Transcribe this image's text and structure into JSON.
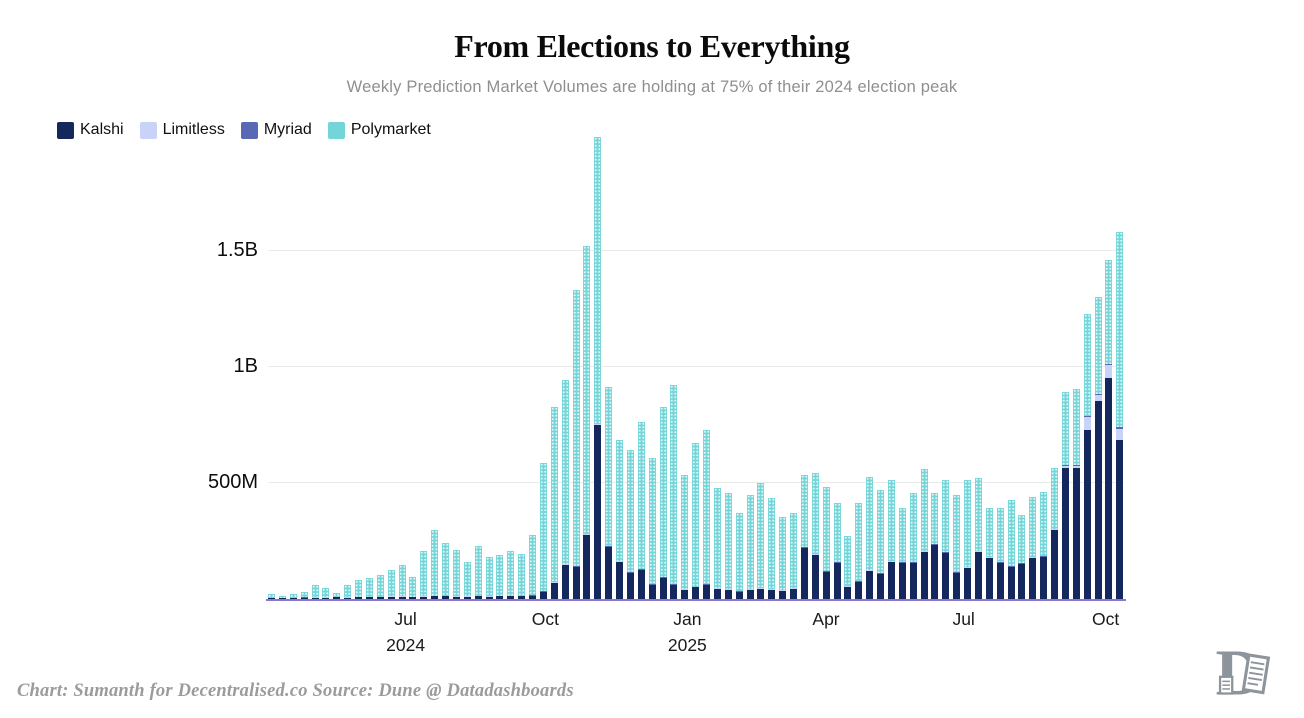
{
  "header": {
    "title": "From Elections to Everything",
    "subtitle": "Weekly Prediction Market Volumes are holding at 75% of their 2024 election peak"
  },
  "legend": [
    {
      "label": "Kalshi",
      "color": "#15285e"
    },
    {
      "label": "Limitless",
      "color": "#c9d3f7"
    },
    {
      "label": "Myriad",
      "color": "#5868b5"
    },
    {
      "label": "Polymarket",
      "color": "#73d5d7"
    }
  ],
  "footer": {
    "credit": "Chart: Sumanth for Decentralised.co Source: Dune @ Datadashboards"
  },
  "logo": {
    "name": "decentralised-d-scroll-logo",
    "color": "#8d949c"
  },
  "chart_data": {
    "type": "bar",
    "stacked": true,
    "title": "From Elections to Everything",
    "unit_note": "weekly volume, values in millions of USD (M)",
    "grid": "horizontal",
    "legend_position": "top-left",
    "ylim": [
      0,
      2000
    ],
    "y_ticks": [
      {
        "value": 500,
        "label": "500M"
      },
      {
        "value": 1000,
        "label": "1B"
      },
      {
        "value": 1500,
        "label": "1.5B"
      }
    ],
    "x_ticks": [
      {
        "index": 12.2,
        "label": "Jul",
        "sublabel": "2024"
      },
      {
        "index": 25.1,
        "label": "Oct",
        "sublabel": ""
      },
      {
        "index": 38.2,
        "label": "Jan",
        "sublabel": "2025"
      },
      {
        "index": 51.0,
        "label": "Apr",
        "sublabel": ""
      },
      {
        "index": 63.7,
        "label": "Jul",
        "sublabel": ""
      },
      {
        "index": 76.8,
        "label": "Oct",
        "sublabel": ""
      }
    ],
    "x_description": "79 consecutive weeks, May 2024 through October 2025",
    "series": [
      {
        "name": "Kalshi",
        "color": "#15285e",
        "values": [
          4,
          3,
          4,
          5,
          6,
          6,
          8,
          6,
          8,
          8,
          8,
          10,
          10,
          8,
          10,
          12,
          12,
          10,
          10,
          12,
          10,
          12,
          12,
          12,
          14,
          30,
          70,
          147,
          138,
          276,
          750,
          224,
          160,
          112,
          125,
          60,
          90,
          60,
          40,
          50,
          60,
          45,
          40,
          30,
          40,
          45,
          40,
          35,
          45,
          220,
          190,
          116,
          155,
          52,
          73,
          121,
          108,
          160,
          155,
          155,
          203,
          233,
          198,
          112,
          134,
          203,
          177,
          155,
          138,
          151,
          177,
          181,
          297,
          565,
          565,
          728,
          853,
          952,
          685
        ]
      },
      {
        "name": "Limitless",
        "color": "#c9d3f7",
        "values": [
          1,
          1,
          1,
          1,
          1,
          1,
          1,
          1,
          1,
          1,
          1,
          1,
          1,
          1,
          1,
          1,
          1,
          1,
          1,
          1,
          1,
          1,
          1,
          1,
          1,
          2,
          2,
          2,
          2,
          3,
          3,
          2,
          2,
          2,
          2,
          2,
          2,
          2,
          2,
          2,
          2,
          2,
          2,
          2,
          2,
          2,
          2,
          2,
          2,
          2,
          2,
          2,
          2,
          2,
          2,
          2,
          2,
          2,
          2,
          2,
          2,
          2,
          2,
          2,
          2,
          2,
          2,
          2,
          2,
          2,
          2,
          2,
          3,
          8,
          8,
          55,
          25,
          55,
          50
        ]
      },
      {
        "name": "Myriad",
        "color": "#5868b5",
        "values": [
          1,
          1,
          1,
          1,
          1,
          1,
          1,
          1,
          1,
          1,
          1,
          1,
          1,
          1,
          1,
          1,
          1,
          1,
          1,
          1,
          1,
          1,
          1,
          1,
          1,
          1,
          1,
          1,
          2,
          2,
          2,
          2,
          1,
          1,
          1,
          1,
          1,
          1,
          1,
          1,
          1,
          1,
          1,
          1,
          1,
          1,
          1,
          1,
          1,
          1,
          1,
          1,
          1,
          1,
          1,
          1,
          1,
          1,
          1,
          1,
          1,
          1,
          1,
          1,
          1,
          1,
          1,
          1,
          1,
          1,
          1,
          1,
          2,
          3,
          3,
          4,
          4,
          5,
          5
        ]
      },
      {
        "name": "Polymarket",
        "color": "#73d5d7",
        "values": [
          15,
          10,
          15,
          23,
          52,
          39,
          15,
          52,
          72,
          80,
          93,
          113,
          135,
          85,
          195,
          283,
          227,
          199,
          148,
          214,
          169,
          176,
          193,
          180,
          259,
          552,
          754,
          794,
          1188,
          1239,
          1235,
          686,
          522,
          527,
          635,
          545,
          734,
          859,
          491,
          619,
          665,
          429,
          413,
          337,
          404,
          451,
          391,
          314,
          322,
          311,
          350,
          364,
          256,
          217,
          338,
          402,
          359,
          350,
          234,
          299,
          354,
          221,
          312,
          333,
          376,
          316,
          212,
          234,
          286,
          208,
          260,
          276,
          263,
          316,
          329,
          443,
          418,
          448,
          840
        ]
      }
    ]
  }
}
